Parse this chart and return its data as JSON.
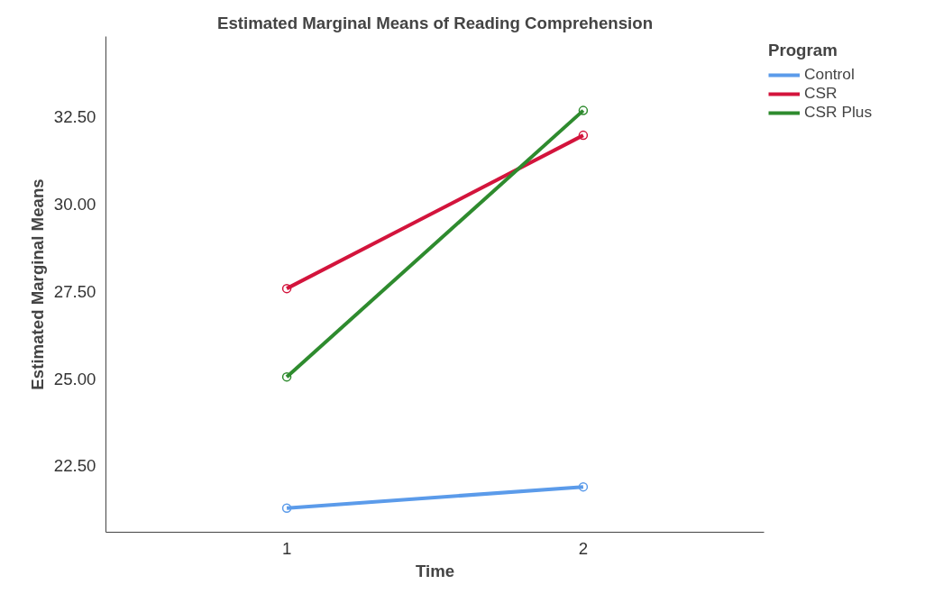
{
  "chart_data": {
    "type": "line",
    "title": "Estimated Marginal Means of Reading Comprehension",
    "xlabel": "Time",
    "ylabel": "Estimated Marginal Means",
    "legend_title": "Program",
    "categories": [
      "1",
      "2"
    ],
    "series": [
      {
        "name": "Control",
        "color": "#5b9bea",
        "values": [
          21.29,
          21.9
        ]
      },
      {
        "name": "CSR",
        "color": "#d3143c",
        "values": [
          27.58,
          31.97
        ]
      },
      {
        "name": "CSR Plus",
        "color": "#2e8b2e",
        "values": [
          25.05,
          32.68
        ]
      }
    ],
    "ylim": [
      20.6,
      34.8
    ],
    "yticks": [
      {
        "value": 22.5,
        "label": "22.50"
      },
      {
        "value": 25,
        "label": "25.00"
      },
      {
        "value": 27.5,
        "label": "27.50"
      },
      {
        "value": 30,
        "label": "30.00"
      },
      {
        "value": 32.5,
        "label": "32.50"
      }
    ],
    "grid": false,
    "legend": "right",
    "marker": "circle",
    "line_style": "solid"
  }
}
